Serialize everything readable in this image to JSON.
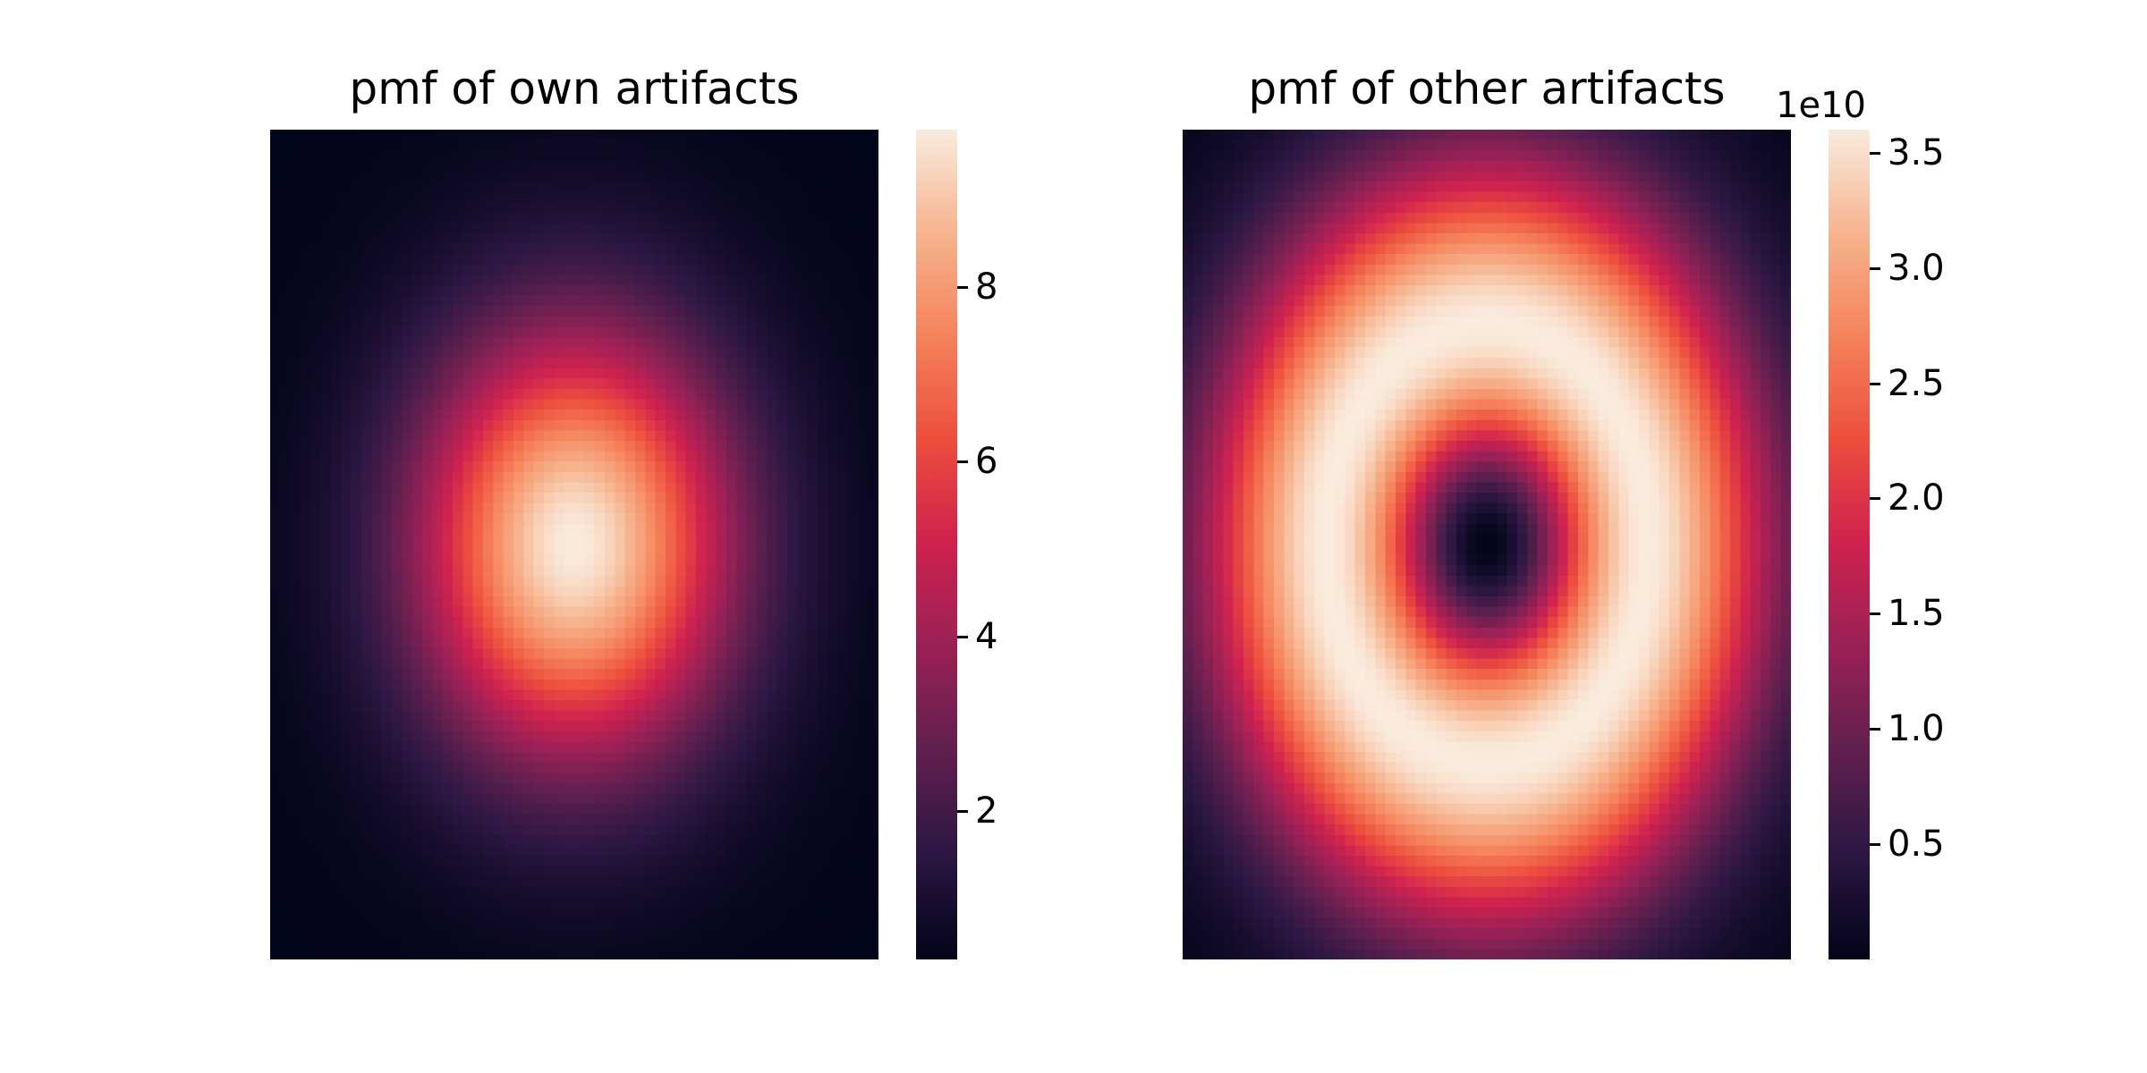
{
  "chart_data": [
    {
      "type": "heatmap",
      "title": "pmf of own artifacts",
      "xlabel": "",
      "ylabel": "",
      "grid": false,
      "nx": 60,
      "ny": 80,
      "pattern": "single centered elliptical peak (Gaussian-like), maximum at center, decaying toward edges",
      "value_range": [
        0.3,
        9.8
      ],
      "colorbar": {
        "ticks": [
          2,
          4,
          6,
          8
        ],
        "tick_labels": [
          "2",
          "4",
          "6",
          "8"
        ],
        "offset_label": ""
      },
      "colormap": "rocket"
    },
    {
      "type": "heatmap",
      "title": "pmf of other artifacts",
      "xlabel": "",
      "ylabel": "",
      "grid": false,
      "nx": 60,
      "ny": 80,
      "pattern": "elliptical ring: minimum at center, maximum along a ring at about half the distance to the edges",
      "value_range": [
        0.0,
        3.6
      ],
      "colorbar": {
        "ticks": [
          0.5,
          1.0,
          1.5,
          2.0,
          2.5,
          3.0,
          3.5
        ],
        "tick_labels": [
          "0.5",
          "1.0",
          "1.5",
          "2.0",
          "2.5",
          "3.0",
          "3.5"
        ],
        "offset_label": "1e10"
      },
      "colormap": "rocket"
    }
  ],
  "colormap_stops": [
    "#03051a",
    "#2c1743",
    "#61204f",
    "#9a2156",
    "#cf224f",
    "#ed4e3e",
    "#f5835b",
    "#f6b48e",
    "#faebdd"
  ]
}
